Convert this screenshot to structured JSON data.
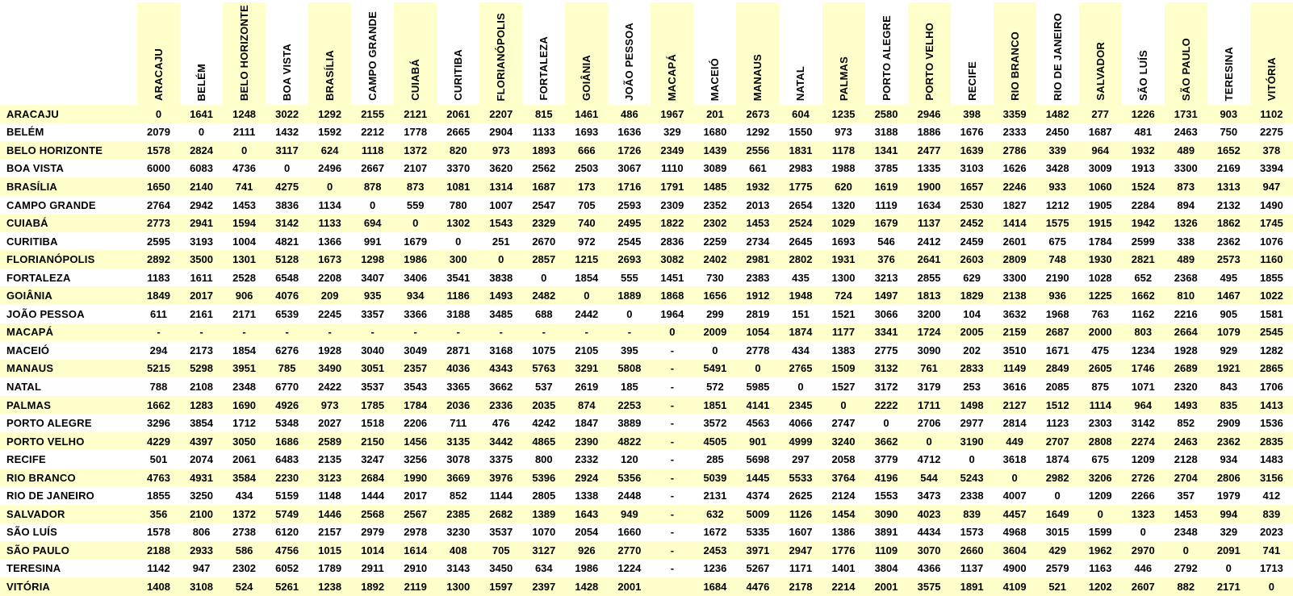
{
  "colors": {
    "row_stripe": "#FFFFCC",
    "col_stripe": "#FFFFCC",
    "background": "#FFFFFF",
    "text": "#000000"
  },
  "chart_data": {
    "type": "table",
    "title": "",
    "corner_label": "",
    "empty_cell_marker": "-",
    "columns": [
      "ARACAJU",
      "BELÉM",
      "BELO HORIZONTE",
      "BOA VISTA",
      "BRASÍLIA",
      "CAMPO GRANDE",
      "CUIABÁ",
      "CURITIBA",
      "FLORIANÓPOLIS",
      "FORTALEZA",
      "GOIÂNIA",
      "JOÃO PESSOA",
      "MACAPÁ",
      "MACEIÓ",
      "MANAUS",
      "NATAL",
      "PALMAS",
      "PORTO ALEGRE",
      "PORTO VELHO",
      "RECIFE",
      "RIO BRANCO",
      "RIO DE JANEIRO",
      "SALVADOR",
      "SÃO LUÍS",
      "SÃO PAULO",
      "TERESINA",
      "VITÓRIA"
    ],
    "row_labels": [
      "ARACAJU",
      "BELÉM",
      "BELO HORIZONTE",
      "BOA VISTA",
      "BRASÍLIA",
      "CAMPO GRANDE",
      "CUIABÁ",
      "CURITIBA",
      "FLORIANÓPOLIS",
      "FORTALEZA",
      "GOIÂNIA",
      "JOÃO PESSOA",
      "MACAPÁ",
      "MACEIÓ",
      "MANAUS",
      "NATAL",
      "PALMAS",
      "PORTO ALEGRE",
      "PORTO VELHO",
      "RECIFE",
      "RIO BRANCO",
      "RIO DE JANEIRO",
      "SALVADOR",
      "SÃO LUÍS",
      "SÃO PAULO",
      "TERESINA",
      "VITÓRIA"
    ],
    "matrix": [
      [
        "0",
        "1641",
        "1248",
        "3022",
        "1292",
        "2155",
        "2121",
        "2061",
        "2207",
        "815",
        "1461",
        "486",
        "1967",
        "201",
        "2673",
        "604",
        "1235",
        "2580",
        "2946",
        "398",
        "3359",
        "1482",
        "277",
        "1226",
        "1731",
        "903",
        "1102"
      ],
      [
        "2079",
        "0",
        "2111",
        "1432",
        "1592",
        "2212",
        "1778",
        "2665",
        "2904",
        "1133",
        "1693",
        "1636",
        "329",
        "1680",
        "1292",
        "1550",
        "973",
        "3188",
        "1886",
        "1676",
        "2333",
        "2450",
        "1687",
        "481",
        "2463",
        "750",
        "2275"
      ],
      [
        "1578",
        "2824",
        "0",
        "3117",
        "624",
        "1118",
        "1372",
        "820",
        "973",
        "1893",
        "666",
        "1726",
        "2349",
        "1439",
        "2556",
        "1831",
        "1178",
        "1341",
        "2477",
        "1639",
        "2786",
        "339",
        "964",
        "1932",
        "489",
        "1652",
        "378"
      ],
      [
        "6000",
        "6083",
        "4736",
        "0",
        "2496",
        "2667",
        "2107",
        "3370",
        "3620",
        "2562",
        "2503",
        "3067",
        "1110",
        "3089",
        "661",
        "2983",
        "1988",
        "3785",
        "1335",
        "3103",
        "1626",
        "3428",
        "3009",
        "1913",
        "3300",
        "2169",
        "3394"
      ],
      [
        "1650",
        "2140",
        "741",
        "4275",
        "0",
        "878",
        "873",
        "1081",
        "1314",
        "1687",
        "173",
        "1716",
        "1791",
        "1485",
        "1932",
        "1775",
        "620",
        "1619",
        "1900",
        "1657",
        "2246",
        "933",
        "1060",
        "1524",
        "873",
        "1313",
        "947"
      ],
      [
        "2764",
        "2942",
        "1453",
        "3836",
        "1134",
        "0",
        "559",
        "780",
        "1007",
        "2547",
        "705",
        "2593",
        "2309",
        "2352",
        "2013",
        "2654",
        "1320",
        "1119",
        "1634",
        "2530",
        "1827",
        "1212",
        "1905",
        "2284",
        "894",
        "2132",
        "1490"
      ],
      [
        "2773",
        "2941",
        "1594",
        "3142",
        "1133",
        "694",
        "0",
        "1302",
        "1543",
        "2329",
        "740",
        "2495",
        "1822",
        "2302",
        "1453",
        "2524",
        "1029",
        "1679",
        "1137",
        "2452",
        "1414",
        "1575",
        "1915",
        "1942",
        "1326",
        "1862",
        "1745"
      ],
      [
        "2595",
        "3193",
        "1004",
        "4821",
        "1366",
        "991",
        "1679",
        "0",
        "251",
        "2670",
        "972",
        "2545",
        "2836",
        "2259",
        "2734",
        "2645",
        "1693",
        "546",
        "2412",
        "2459",
        "2601",
        "675",
        "1784",
        "2599",
        "338",
        "2362",
        "1076"
      ],
      [
        "2892",
        "3500",
        "1301",
        "5128",
        "1673",
        "1298",
        "1986",
        "300",
        "0",
        "2857",
        "1215",
        "2693",
        "3082",
        "2402",
        "2981",
        "2802",
        "1931",
        "376",
        "2641",
        "2603",
        "2809",
        "748",
        "1930",
        "2821",
        "489",
        "2573",
        "1160"
      ],
      [
        "1183",
        "1611",
        "2528",
        "6548",
        "2208",
        "3407",
        "3406",
        "3541",
        "3838",
        "0",
        "1854",
        "555",
        "1451",
        "730",
        "2383",
        "435",
        "1300",
        "3213",
        "2855",
        "629",
        "3300",
        "2190",
        "1028",
        "652",
        "2368",
        "495",
        "1855"
      ],
      [
        "1849",
        "2017",
        "906",
        "4076",
        "209",
        "935",
        "934",
        "1186",
        "1493",
        "2482",
        "0",
        "1889",
        "1868",
        "1656",
        "1912",
        "1948",
        "724",
        "1497",
        "1813",
        "1829",
        "2138",
        "936",
        "1225",
        "1662",
        "810",
        "1467",
        "1022"
      ],
      [
        "611",
        "2161",
        "2171",
        "6539",
        "2245",
        "3357",
        "3366",
        "3188",
        "3485",
        "688",
        "2442",
        "0",
        "1964",
        "299",
        "2819",
        "151",
        "1521",
        "3066",
        "3200",
        "104",
        "3632",
        "1968",
        "763",
        "1162",
        "2216",
        "905",
        "1581"
      ],
      [
        "-",
        "-",
        "-",
        "-",
        "-",
        "-",
        "-",
        "-",
        "-",
        "-",
        "-",
        "-",
        "0",
        "2009",
        "1054",
        "1874",
        "1177",
        "3341",
        "1724",
        "2005",
        "2159",
        "2687",
        "2000",
        "803",
        "2664",
        "1079",
        "2545"
      ],
      [
        "294",
        "2173",
        "1854",
        "6276",
        "1928",
        "3040",
        "3049",
        "2871",
        "3168",
        "1075",
        "2105",
        "395",
        "-",
        "0",
        "2778",
        "434",
        "1383",
        "2775",
        "3090",
        "202",
        "3510",
        "1671",
        "475",
        "1234",
        "1928",
        "929",
        "1282"
      ],
      [
        "5215",
        "5298",
        "3951",
        "785",
        "3490",
        "3051",
        "2357",
        "4036",
        "4343",
        "5763",
        "3291",
        "5808",
        "-",
        "5491",
        "0",
        "2765",
        "1509",
        "3132",
        "761",
        "2833",
        "1149",
        "2849",
        "2605",
        "1746",
        "2689",
        "1921",
        "2865"
      ],
      [
        "788",
        "2108",
        "2348",
        "6770",
        "2422",
        "3537",
        "3543",
        "3365",
        "3662",
        "537",
        "2619",
        "185",
        "-",
        "572",
        "5985",
        "0",
        "1527",
        "3172",
        "3179",
        "253",
        "3616",
        "2085",
        "875",
        "1071",
        "2320",
        "843",
        "1706"
      ],
      [
        "1662",
        "1283",
        "1690",
        "4926",
        "973",
        "1785",
        "1784",
        "2036",
        "2336",
        "2035",
        "874",
        "2253",
        "-",
        "1851",
        "4141",
        "2345",
        "0",
        "2222",
        "1711",
        "1498",
        "2127",
        "1512",
        "1114",
        "964",
        "1493",
        "835",
        "1413"
      ],
      [
        "3296",
        "3854",
        "1712",
        "5348",
        "2027",
        "1518",
        "2206",
        "711",
        "476",
        "4242",
        "1847",
        "3889",
        "-",
        "3572",
        "4563",
        "4066",
        "2747",
        "0",
        "2706",
        "2977",
        "2814",
        "1123",
        "2303",
        "3142",
        "852",
        "2909",
        "1536"
      ],
      [
        "4229",
        "4397",
        "3050",
        "1686",
        "2589",
        "2150",
        "1456",
        "3135",
        "3442",
        "4865",
        "2390",
        "4822",
        "-",
        "4505",
        "901",
        "4999",
        "3240",
        "3662",
        "0",
        "3190",
        "449",
        "2707",
        "2808",
        "2274",
        "2463",
        "2362",
        "2835"
      ],
      [
        "501",
        "2074",
        "2061",
        "6483",
        "2135",
        "3247",
        "3256",
        "3078",
        "3375",
        "800",
        "2332",
        "120",
        "-",
        "285",
        "5698",
        "297",
        "2058",
        "3779",
        "4712",
        "0",
        "3618",
        "1874",
        "675",
        "1209",
        "2128",
        "934",
        "1483"
      ],
      [
        "4763",
        "4931",
        "3584",
        "2230",
        "3123",
        "2684",
        "1990",
        "3669",
        "3976",
        "5396",
        "2924",
        "5356",
        "-",
        "5039",
        "1445",
        "5533",
        "3764",
        "4196",
        "544",
        "5243",
        "0",
        "2982",
        "3206",
        "2726",
        "2704",
        "2806",
        "3156"
      ],
      [
        "1855",
        "3250",
        "434",
        "5159",
        "1148",
        "1444",
        "2017",
        "852",
        "1144",
        "2805",
        "1338",
        "2448",
        "-",
        "2131",
        "4374",
        "2625",
        "2124",
        "1553",
        "3473",
        "2338",
        "4007",
        "0",
        "1209",
        "2266",
        "357",
        "1979",
        "412"
      ],
      [
        "356",
        "2100",
        "1372",
        "5749",
        "1446",
        "2568",
        "2567",
        "2385",
        "2682",
        "1389",
        "1643",
        "949",
        "-",
        "632",
        "5009",
        "1126",
        "1454",
        "3090",
        "4023",
        "839",
        "4457",
        "1649",
        "0",
        "1323",
        "1453",
        "994",
        "839"
      ],
      [
        "1578",
        "806",
        "2738",
        "6120",
        "2157",
        "2979",
        "2978",
        "3230",
        "3537",
        "1070",
        "2054",
        "1660",
        "-",
        "1672",
        "5335",
        "1607",
        "1386",
        "3891",
        "4434",
        "1573",
        "4968",
        "3015",
        "1599",
        "0",
        "2348",
        "329",
        "2023"
      ],
      [
        "2188",
        "2933",
        "586",
        "4756",
        "1015",
        "1014",
        "1614",
        "408",
        "705",
        "3127",
        "926",
        "2770",
        "-",
        "2453",
        "3971",
        "2947",
        "1776",
        "1109",
        "3070",
        "2660",
        "3604",
        "429",
        "1962",
        "2970",
        "0",
        "2091",
        "741"
      ],
      [
        "1142",
        "947",
        "2302",
        "6052",
        "1789",
        "2911",
        "2910",
        "3143",
        "3450",
        "634",
        "1986",
        "1224",
        "-",
        "1236",
        "5267",
        "1171",
        "1401",
        "3804",
        "4366",
        "1137",
        "4900",
        "2579",
        "1163",
        "446",
        "2792",
        "0",
        "1713"
      ],
      [
        "1408",
        "3108",
        "524",
        "5261",
        "1238",
        "1892",
        "2119",
        "1300",
        "1597",
        "2397",
        "1428",
        "2001",
        "",
        "1684",
        "4476",
        "2178",
        "2214",
        "2001",
        "3575",
        "1891",
        "4109",
        "521",
        "1202",
        "2607",
        "882",
        "2171",
        "0"
      ]
    ]
  }
}
